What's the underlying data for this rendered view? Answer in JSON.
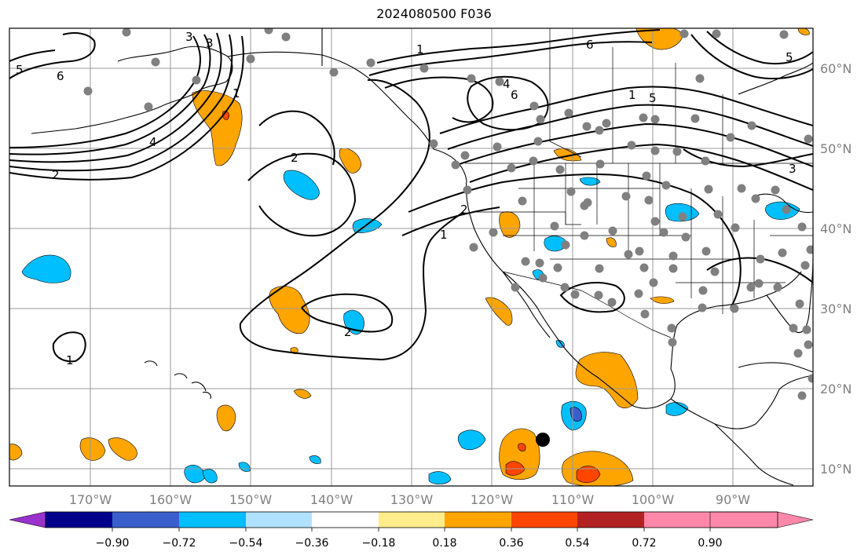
{
  "title": "2024080500 F036",
  "map": {
    "lon_ticks": [
      "170°W",
      "160°W",
      "150°W",
      "140°W",
      "130°W",
      "120°W",
      "110°W",
      "100°W",
      "90°W"
    ],
    "lat_ticks": [
      "60°N",
      "50°N",
      "40°N",
      "30°N",
      "20°N",
      "10°N"
    ],
    "contour_labels": [
      "5",
      "6",
      "4",
      "2",
      "3",
      "3",
      "1",
      "1",
      "2",
      "6",
      "4",
      "5",
      "6",
      "5",
      "2",
      "1",
      "2",
      "1",
      "1",
      "3"
    ],
    "contour_color": "#000000",
    "coast_color": "#000000",
    "grid_color": "#999999",
    "station_color": "#808080",
    "marker_color": "#000000"
  },
  "colorbar": {
    "ticks": [
      "−0.90",
      "−0.72",
      "−0.54",
      "−0.36",
      "−0.18",
      "0.18",
      "0.36",
      "0.54",
      "0.72",
      "0.90"
    ],
    "colors": [
      "#9932cc",
      "#00008b",
      "#3a5fcd",
      "#00bfff",
      "#b0e2ff",
      "#ffffff",
      "#ffec8b",
      "#ffa500",
      "#ff4500",
      "#b22222",
      "#ff88aa"
    ]
  }
}
